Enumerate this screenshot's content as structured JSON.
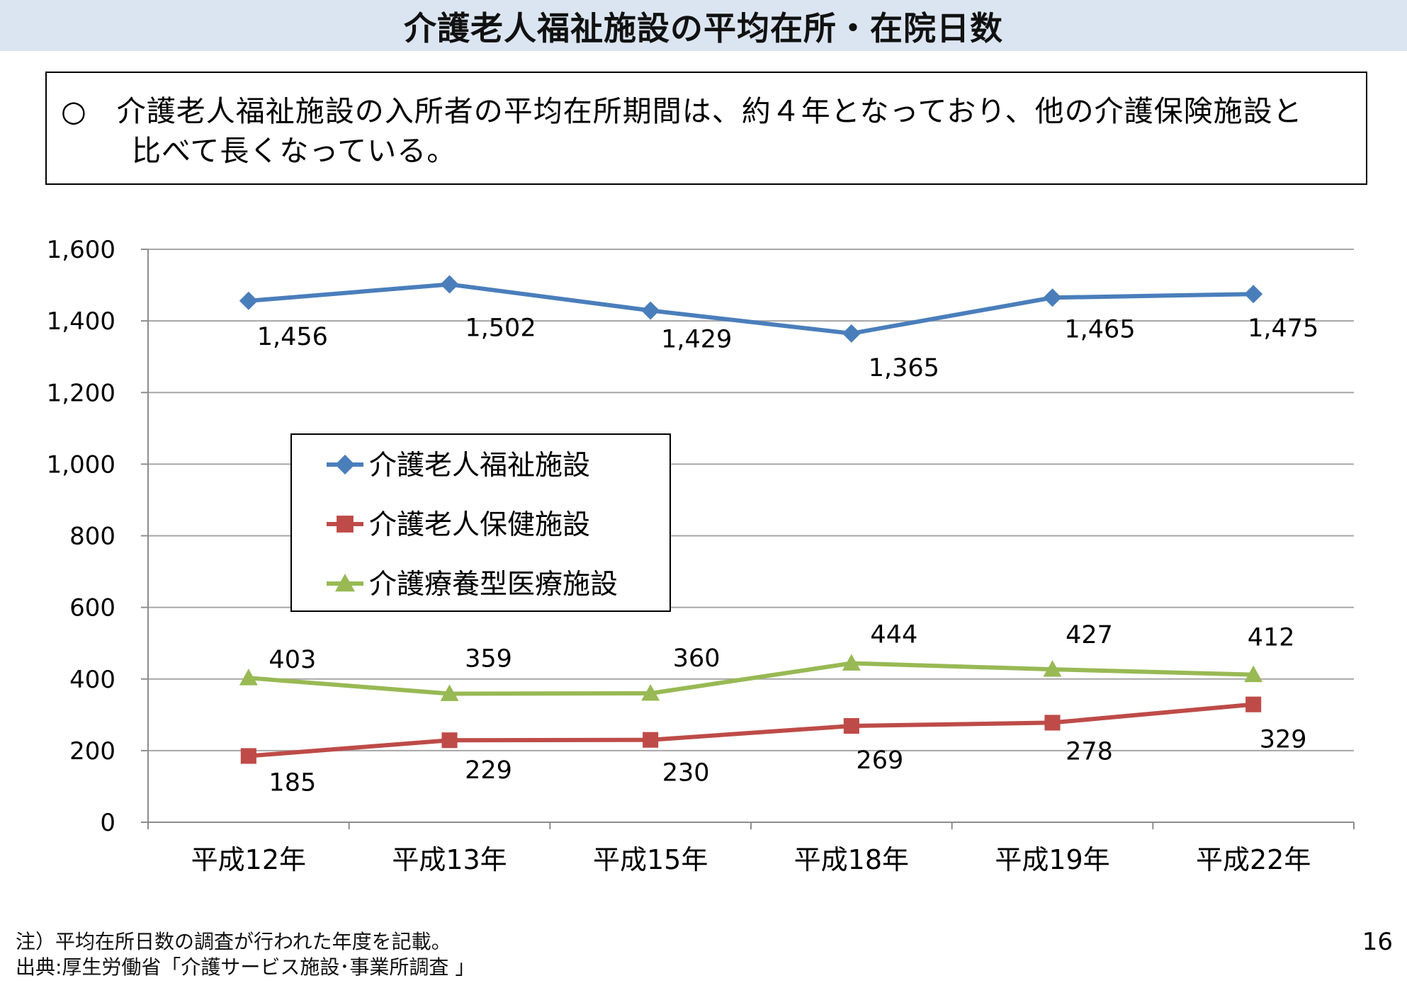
{
  "header": {
    "title": "介護老人福祉施設の平均在所・在院日数"
  },
  "summary": {
    "line1": "○　介護老人福祉施設の入所者の平均在所期間は、約４年となっており、他の介護保険施設と",
    "line2": "比べて長くなっている。"
  },
  "chart_data": {
    "type": "line",
    "categories": [
      "平成12年",
      "平成13年",
      "平成15年",
      "平成18年",
      "平成19年",
      "平成22年"
    ],
    "ylim": [
      0,
      1600
    ],
    "yticks": [
      "0",
      "200",
      "400",
      "600",
      "800",
      "1,000",
      "1,200",
      "1,400",
      "1,600"
    ],
    "grid": true,
    "legend_position": "center-left",
    "series": [
      {
        "name": "介護老人福祉施設",
        "values": [
          1456,
          1502,
          1429,
          1365,
          1465,
          1475
        ],
        "labels": [
          "1,456",
          "1,502",
          "1,429",
          "1,365",
          "1,465",
          "1,475"
        ],
        "color": "#4a7ebb",
        "marker": "diamond"
      },
      {
        "name": "介護老人保健施設",
        "values": [
          185,
          229,
          230,
          269,
          278,
          329
        ],
        "labels": [
          "185",
          "229",
          "230",
          "269",
          "278",
          "329"
        ],
        "color": "#be4b48",
        "marker": "square"
      },
      {
        "name": "介護療養型医療施設",
        "values": [
          403,
          359,
          360,
          444,
          427,
          412
        ],
        "labels": [
          "403",
          "359",
          "360",
          "444",
          "427",
          "412"
        ],
        "color": "#98b954",
        "marker": "triangle"
      }
    ]
  },
  "notes": {
    "note": "注）平均在所日数の調査が行われた年度を記載。",
    "source": "出典:厚生労働省「介護サービス施設･事業所調査 」"
  },
  "page_number": "16"
}
